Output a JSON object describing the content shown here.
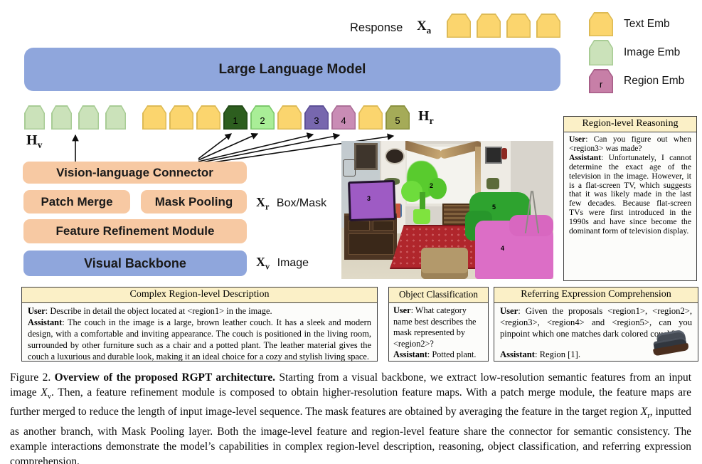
{
  "figure": {
    "response_label": "Response",
    "xa": {
      "base": "X",
      "sub": "a"
    },
    "llm_label": "Large Language Model",
    "hv": {
      "base": "H",
      "sub": "v"
    },
    "hr": {
      "base": "H",
      "sub": "r"
    },
    "connector_label": "Vision-language Connector",
    "patch_merge_label": "Patch Merge",
    "mask_pooling_label": "Mask Pooling",
    "frm_label": "Feature Refinement Module",
    "backbone_label": "Visual Backbone",
    "xr": {
      "base": "X",
      "sub": "r",
      "desc": "Box/Mask"
    },
    "xv": {
      "base": "X",
      "sub": "v",
      "desc": "Image"
    }
  },
  "colors": {
    "llm_blue": "#8FA6DC",
    "module_salmon": "#F7C9A3",
    "panel_header_cream": "#FBF0C7",
    "text_emb_yellow": "#FBD56E",
    "image_emb_green": "#CBE2BA",
    "region_emb_pink": "#C77FA7"
  },
  "legend": {
    "items": [
      {
        "name": "text-emb",
        "label": "Text Emb",
        "fill": "#FBD56E",
        "edge": "#DDBA55",
        "token_label": ""
      },
      {
        "name": "image-emb",
        "label": "Image Emb",
        "fill": "#CBE2BA",
        "edge": "#A8CC95",
        "token_label": ""
      },
      {
        "name": "region-emb",
        "label": "Region Emb",
        "fill": "#C77FA7",
        "edge": "#A75E88",
        "token_label": "r"
      }
    ]
  },
  "tokens": {
    "response_group": [
      {
        "name": "text-emb-token",
        "fill": "#FBD56E",
        "edge": "#DDBA55",
        "label": ""
      },
      {
        "name": "text-emb-token",
        "fill": "#FBD56E",
        "edge": "#DDBA55",
        "label": ""
      },
      {
        "name": "text-emb-token",
        "fill": "#FBD56E",
        "edge": "#DDBA55",
        "label": ""
      },
      {
        "name": "text-emb-token",
        "fill": "#FBD56E",
        "edge": "#DDBA55",
        "label": ""
      }
    ],
    "image_group": [
      {
        "name": "image-emb-token",
        "fill": "#CBE2BA",
        "edge": "#A8CC95",
        "label": ""
      },
      {
        "name": "image-emb-token",
        "fill": "#CBE2BA",
        "edge": "#A8CC95",
        "label": ""
      },
      {
        "name": "image-emb-token",
        "fill": "#CBE2BA",
        "edge": "#A8CC95",
        "label": ""
      },
      {
        "name": "image-emb-token",
        "fill": "#CBE2BA",
        "edge": "#A8CC95",
        "label": ""
      }
    ],
    "main_group": [
      {
        "name": "text-emb-token",
        "fill": "#FBD56E",
        "edge": "#DDBA55",
        "label": ""
      },
      {
        "name": "text-emb-token",
        "fill": "#FBD56E",
        "edge": "#DDBA55",
        "label": ""
      },
      {
        "name": "text-emb-token",
        "fill": "#FBD56E",
        "edge": "#DDBA55",
        "label": ""
      },
      {
        "name": "region-token-1",
        "fill": "#2D5E1F",
        "edge": "#224A17",
        "label": "1"
      },
      {
        "name": "region-token-2",
        "fill": "#A9EE97",
        "edge": "#7BC86B",
        "label": "2"
      },
      {
        "name": "text-emb-token",
        "fill": "#FBD56E",
        "edge": "#DDBA55",
        "label": ""
      },
      {
        "name": "region-token-3",
        "fill": "#7767AE",
        "edge": "#5C4F96",
        "label": "3"
      },
      {
        "name": "region-token-4",
        "fill": "#C98CB5",
        "edge": "#AB6E97",
        "label": "4"
      },
      {
        "name": "text-emb-token",
        "fill": "#FBD56E",
        "edge": "#DDBA55",
        "label": ""
      },
      {
        "name": "region-token-5",
        "fill": "#A5AB58",
        "edge": "#8A913F",
        "label": "5"
      }
    ]
  },
  "scene": {
    "labels": {
      "tv": "3",
      "plant": "2",
      "green_sofa": "5",
      "pink_couch": "4"
    }
  },
  "reasoning_box": {
    "title": "Region-level Reasoning",
    "user_label": "User",
    "user_text": ": Can you figure out when <region3> was made?",
    "assistant_label": "Assistant",
    "assistant_text": ": Unfortunately, I cannot determine the exact age of the television in the image. However, it is a flat-screen TV, which suggests that it was likely made in the last few decades. Because flat-screen TVs were first introduced in the 1990s and have since become the dominant form of television display."
  },
  "description_box": {
    "title": "Complex Region-level Description",
    "user_label": "User",
    "user_text": ": Describe in detail the object located at <region1> in the image.",
    "assistant_label": "Assistant",
    "assistant_text": ": The couch in the image is a large, brown leather couch. It has a sleek and modern design, with a comfortable and inviting appearance. The couch is positioned in the living room, surrounded by other furniture such as a chair and a potted plant. The leather material gives the couch a luxurious and durable look, making it an ideal choice for a cozy and stylish living space."
  },
  "classification_box": {
    "title": "Object Classification",
    "user_label": "User",
    "user_text": ": What category name best describes the mask represented by <region2>?",
    "assistant_label": "Assistant",
    "assistant_text": ": Potted plant."
  },
  "referring_box": {
    "title": "Referring Expression Comprehension",
    "user_label": "User",
    "user_text": ": Given the proposals <region1>, <region2>, <region3>, <region4> and <region5>, can you pinpoint which one matches dark colored couch?",
    "assistant_label": "Assistant",
    "assistant_text": ": Region [1]."
  },
  "caption": {
    "label": "Figure 2. ",
    "title_bold": "Overview of the proposed RGPT architecture. ",
    "seg1": "Starting from a visual backbone, we extract low-resolution semantic features from an input image ",
    "math1": {
      "base": "X",
      "sub": "v"
    },
    "seg2": ". Then, a feature refinement module is composed to obtain higher-resolution feature maps. With a patch merge module, the feature maps are further merged to reduce the length of input image-level sequence. The mask features are obtained by averaging the feature in the target region ",
    "math2": {
      "base": "X",
      "sub": "r"
    },
    "seg3": ", inputted as another branch, with Mask Pooling layer. Both the image-level feature and region-level feature share the connector for semantic consistency. The example interactions demonstrate the model’s capabilities in complex region-level description, reasoning, object classification, and referring expression comprehension."
  }
}
